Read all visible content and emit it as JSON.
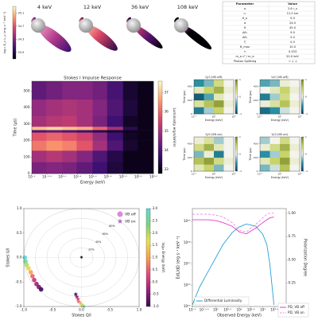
{
  "renders": {
    "labels": [
      "4 keV",
      "12 keV",
      "36 keV",
      "108 keV"
    ],
    "colorbar_label": "log₁₀ E_γ L_γ (erg s⁻¹ keV⁻¹)",
    "clim": [
      33.7,
      35.3
    ],
    "colorbar_ticks": [
      33.9,
      34.3,
      34.7,
      35.1
    ]
  },
  "parameters": {
    "header": [
      "Parameter",
      "Value"
    ],
    "rows": [
      [
        "a",
        "2.6 r_s"
      ],
      [
        "r₀",
        "12.0 km"
      ],
      [
        "θ_o",
        "9.0"
      ],
      [
        "α",
        "24.0"
      ],
      [
        "θ",
        "45.0"
      ],
      [
        "Δθ₁",
        "9.0"
      ],
      [
        "Δθ₂",
        "9.0"
      ],
      [
        "ζ",
        "0.0"
      ],
      [
        "B_max",
        "10.0"
      ],
      [
        "τ",
        "0.333"
      ],
      [
        "m_e c² / m_e",
        "20.0 keV"
      ],
      [
        "Photon Splitting",
        "→ ↓ ↓"
      ]
    ]
  },
  "chart_data": [
    {
      "type": "heatmap",
      "title": "Stokes I Impulse Response",
      "xlabel": "Energy (keV)",
      "ylabel": "Time (μs)",
      "xlog": true,
      "xlim": [
        0.1,
        1000
      ],
      "ylim": [
        0,
        560
      ],
      "xticks": [
        {
          "value": 0.1,
          "label": "10⁻¹"
        },
        {
          "value": 0.3162,
          "label": "10⁻⁰·⁵"
        },
        {
          "value": 1,
          "label": "10⁰·⁰"
        },
        {
          "value": 3.162,
          "label": "10⁰·⁵"
        },
        {
          "value": 10,
          "label": "10¹·⁰"
        },
        {
          "value": 31.62,
          "label": "10¹·⁵"
        },
        {
          "value": 100,
          "label": "10²·⁰"
        },
        {
          "value": 316.2,
          "label": "10²·⁵"
        },
        {
          "value": 1000,
          "label": "10³·⁰"
        }
      ],
      "yticks": [
        0,
        100,
        200,
        300,
        400,
        500
      ],
      "x_edges": [
        0.1,
        0.3,
        1,
        3,
        10,
        30,
        100,
        300,
        1000
      ],
      "y_edges": [
        0,
        70,
        140,
        200,
        250,
        265,
        285,
        350,
        450,
        560
      ],
      "values": [
        [
          34.5,
          34.6,
          34.5,
          34.2,
          33.8,
          33.3,
          33,
          33
        ],
        [
          35.0,
          35.2,
          35.0,
          34.6,
          34.0,
          33.4,
          33,
          33
        ],
        [
          36.2,
          36.5,
          36.3,
          35.8,
          35.0,
          34.0,
          33.2,
          33
        ],
        [
          35.8,
          36.0,
          35.8,
          35.5,
          34.8,
          33.8,
          33.1,
          33
        ],
        [
          34.0,
          34.2,
          34.0,
          33.8,
          33.5,
          33.2,
          33,
          33
        ],
        [
          37.0,
          37.2,
          37.0,
          36.8,
          36.0,
          35.0,
          33.5,
          33
        ],
        [
          35.0,
          35.2,
          35.3,
          35.0,
          34.5,
          33.8,
          33.1,
          33
        ],
        [
          34.8,
          35.0,
          35.1,
          35.0,
          34.6,
          34.0,
          33.3,
          33
        ],
        [
          34.2,
          34.4,
          34.6,
          34.6,
          34.4,
          33.9,
          33.2,
          33
        ]
      ],
      "clim": [
        32.8,
        37.6
      ],
      "colorbar_label": "Luminosity erg/s/keV/sr",
      "colorbar_ticks": [
        33,
        34,
        35,
        36,
        37
      ],
      "colormap": [
        "#000004",
        "#3b0f70",
        "#8c2981",
        "#de4968",
        "#fe9f6d",
        "#fcfdbf"
      ]
    },
    {
      "type": "heatmap",
      "title": "Q/I (VB off)",
      "xlabel": "Energy (keV)",
      "ylabel": "Time (μs)",
      "xlog": true,
      "xlim": [
        0.1,
        1000
      ],
      "ylim": [
        0,
        500
      ],
      "xticks": [
        {
          "value": 0.1,
          "label": "10⁻¹"
        },
        {
          "value": 10,
          "label": "10¹"
        },
        {
          "value": 1000,
          "label": "10³"
        }
      ],
      "yticks": [
        0,
        200,
        400
      ],
      "x_edges": [
        0.1,
        1,
        10,
        100,
        1000
      ],
      "y_edges": [
        0,
        100,
        200,
        300,
        400,
        500
      ],
      "values": [
        [
          -0.6,
          -0.2,
          0.5,
          0.0
        ],
        [
          0.3,
          0.6,
          0.8,
          0.1
        ],
        [
          -0.8,
          -0.4,
          0.2,
          0.0
        ],
        [
          0.2,
          0.5,
          0.7,
          0.1
        ],
        [
          -0.5,
          -0.3,
          0.4,
          0.0
        ]
      ],
      "clim": [
        -1,
        1
      ],
      "colorbar_ticks": [
        -1,
        0,
        1
      ],
      "colormap": [
        "#0b3a5e",
        "#2a8fa0",
        "#f4f4ee",
        "#c8d46a",
        "#6f7f1e"
      ]
    },
    {
      "type": "heatmap",
      "title": "U/I (VB off)",
      "xlabel": "Energy (keV)",
      "ylabel": "Time (μs)",
      "xlog": true,
      "xlim": [
        0.1,
        1000
      ],
      "ylim": [
        0,
        500
      ],
      "xticks": [
        {
          "value": 0.1,
          "label": "10⁻¹"
        },
        {
          "value": 10,
          "label": "10¹"
        },
        {
          "value": 1000,
          "label": "10³"
        }
      ],
      "yticks": [
        0,
        200,
        400
      ],
      "x_edges": [
        0.1,
        1,
        10,
        100,
        1000
      ],
      "y_edges": [
        0,
        100,
        200,
        300,
        400,
        500
      ],
      "values": [
        [
          -0.7,
          -0.5,
          -0.1,
          0.0
        ],
        [
          0.1,
          0.3,
          0.6,
          0.1
        ],
        [
          -0.6,
          -0.2,
          0.4,
          0.0
        ],
        [
          0.0,
          0.2,
          0.5,
          0.1
        ],
        [
          -0.4,
          -0.3,
          0.1,
          0.0
        ]
      ],
      "clim": [
        -1,
        1
      ],
      "colorbar_ticks": [
        -1,
        0,
        1
      ],
      "colormap": [
        "#0b3a5e",
        "#2a8fa0",
        "#f4f4ee",
        "#c8d46a",
        "#6f7f1e"
      ]
    },
    {
      "type": "heatmap",
      "title": "Q/I (VB on)",
      "xlabel": "Energy (keV)",
      "ylabel": "Time (μs)",
      "xlog": true,
      "xlim": [
        0.1,
        1000
      ],
      "ylim": [
        0,
        500
      ],
      "xticks": [
        {
          "value": 0.1,
          "label": "10⁻¹"
        },
        {
          "value": 10,
          "label": "10¹"
        },
        {
          "value": 1000,
          "label": "10³"
        }
      ],
      "yticks": [
        0,
        200,
        400
      ],
      "x_edges": [
        0.1,
        1,
        10,
        100,
        1000
      ],
      "y_edges": [
        0,
        100,
        200,
        300,
        400,
        500
      ],
      "values": [
        [
          0.2,
          0.5,
          -0.3,
          0.0
        ],
        [
          0.6,
          0.8,
          0.4,
          0.1
        ],
        [
          -0.3,
          0.1,
          -0.6,
          0.0
        ],
        [
          0.4,
          0.7,
          0.2,
          0.0
        ],
        [
          0.1,
          0.3,
          -0.2,
          0.0
        ]
      ],
      "clim": [
        -1,
        1
      ],
      "colorbar_ticks": [
        -1,
        0,
        1
      ],
      "colormap": [
        "#0b3a5e",
        "#2a8fa0",
        "#f4f4ee",
        "#c8d46a",
        "#6f7f1e"
      ]
    },
    {
      "type": "heatmap",
      "title": "U/I (VB on)",
      "xlabel": "Energy (keV)",
      "ylabel": "Time (μs)",
      "xlog": true,
      "xlim": [
        0.1,
        1000
      ],
      "ylim": [
        0,
        500
      ],
      "xticks": [
        {
          "value": 0.1,
          "label": "10⁻¹"
        },
        {
          "value": 10,
          "label": "10¹"
        },
        {
          "value": 1000,
          "label": "10³"
        }
      ],
      "yticks": [
        0,
        200,
        400
      ],
      "x_edges": [
        0.1,
        1,
        10,
        100,
        1000
      ],
      "y_edges": [
        0,
        100,
        200,
        300,
        400,
        500
      ],
      "values": [
        [
          -0.3,
          -0.1,
          0.6,
          0.0
        ],
        [
          0.2,
          0.5,
          0.8,
          0.1
        ],
        [
          -0.5,
          -0.2,
          0.5,
          0.0
        ],
        [
          0.1,
          0.4,
          0.7,
          0.1
        ],
        [
          -0.2,
          0.0,
          0.4,
          0.0
        ]
      ],
      "clim": [
        -1,
        1
      ],
      "colorbar_ticks": [
        -1,
        0,
        1
      ],
      "colormap": [
        "#0b3a5e",
        "#2a8fa0",
        "#f4f4ee",
        "#c8d46a",
        "#6f7f1e"
      ]
    },
    {
      "type": "scatter",
      "xlabel": "Stokes Q/I",
      "ylabel": "Stokes U/I",
      "xlim": [
        -1,
        1
      ],
      "ylim": [
        -1,
        1
      ],
      "xticks": [
        {
          "value": -1,
          "label": "-1.0"
        },
        -0.5,
        {
          "value": 0,
          "label": "0.0"
        },
        0.5,
        {
          "value": 1,
          "label": "1.0"
        }
      ],
      "yticks": [
        {
          "value": -1,
          "label": "-1.0"
        },
        -0.5,
        {
          "value": 0,
          "label": "0.0"
        },
        0.5,
        {
          "value": 1,
          "label": "1.0"
        }
      ],
      "rings": [
        {
          "value": 0.2,
          "label": "20%"
        },
        {
          "value": 0.4,
          "label": "40%"
        },
        {
          "value": 0.6,
          "label": "60%"
        },
        {
          "value": 0.8,
          "label": "80%"
        }
      ],
      "colorbar_label": "log₁₀ Energy (keV)",
      "clim": [
        -1,
        3
      ],
      "colorbar_ticks": [
        {
          "value": -1,
          "label": "-1.0"
        },
        -0.5,
        {
          "value": 0,
          "label": "0.0"
        },
        0.5,
        {
          "value": 1,
          "label": "1.0"
        },
        1.5,
        {
          "value": 2,
          "label": "2.0"
        },
        2.5,
        {
          "value": 3,
          "label": "3.0"
        }
      ],
      "colormap": [
        "#3b0a55",
        "#9c1f7a",
        "#e5497a",
        "#f7a14a",
        "#e8e24a",
        "#7fd37a",
        "#5fd9d9"
      ],
      "series": [
        {
          "name": "VB off",
          "marker": "circle",
          "color": "#d98ad9",
          "x": [
            -0.98,
            -0.97,
            -0.95,
            -0.92,
            -0.88,
            -0.85,
            -0.82,
            -0.78,
            -0.74,
            -0.7
          ],
          "y": [
            0.0,
            -0.08,
            -0.15,
            -0.22,
            -0.3,
            -0.38,
            -0.46,
            -0.54,
            -0.6,
            -0.65
          ],
          "energy": [
            3,
            2.5,
            2,
            1.5,
            1,
            0.5,
            0,
            -0.3,
            -0.6,
            -1
          ]
        },
        {
          "name": "VB on",
          "marker": "star",
          "color": "#b070c8",
          "x": [
            -0.1,
            -0.08,
            -0.06,
            -0.05,
            -0.02,
            0.0,
            0.02,
            0.04
          ],
          "y": [
            -0.75,
            -0.8,
            -0.85,
            -0.9,
            -0.93,
            -0.96,
            -0.98,
            -1.0
          ],
          "energy": [
            -1,
            -0.5,
            0,
            0.5,
            1,
            1.5,
            2,
            2.5
          ]
        }
      ]
    },
    {
      "type": "line",
      "xlabel": "Observed Energy (keV)",
      "ylabel": "EdL/dΩ (erg s⁻¹ keV⁻¹)",
      "y2label": "Polarization Degree",
      "xlog": true,
      "ylog": true,
      "xlim": [
        0.1,
        1000
      ],
      "ylim": [
        1e+35,
        4e+39
      ],
      "y2lim": [
        0,
        1.05
      ],
      "xticks": [
        {
          "value": 0.1,
          "label": "10⁻¹"
        },
        {
          "value": 0.3162,
          "label": "10⁻⁰·⁵"
        },
        {
          "value": 1,
          "label": "10⁰"
        },
        {
          "value": 3.162,
          "label": "10⁰·⁵"
        },
        {
          "value": 10,
          "label": "10¹"
        },
        {
          "value": 31.62,
          "label": "10¹·⁵"
        },
        {
          "value": 100,
          "label": "10²"
        },
        {
          "value": 316.2,
          "label": "10²·⁵"
        },
        {
          "value": 1000,
          "label": "10³"
        }
      ],
      "yticks": [
        {
          "value": 1e+35,
          "label": "10³⁵"
        },
        {
          "value": 1e+36,
          "label": "10³⁶"
        },
        {
          "value": 1e+37,
          "label": "10³⁷"
        },
        {
          "value": 1e+38,
          "label": "10³⁸"
        },
        {
          "value": 1e+39,
          "label": "10³⁹"
        }
      ],
      "y2ticks": [
        {
          "value": 0,
          "label": "0.00"
        },
        0.25,
        {
          "value": 0.5,
          "label": "0.50"
        },
        0.75,
        {
          "value": 1,
          "label": "1.00"
        }
      ],
      "x": [
        0.1,
        0.2,
        0.5,
        1,
        2,
        5,
        10,
        20,
        50,
        100,
        150,
        200,
        300
      ],
      "series": [
        {
          "name": "Differential Luminosity",
          "color": "#2a9fd8",
          "values": [
            1.2e+35,
            8e+35,
            5e+36,
            2e+37,
            8e+37,
            3e+38,
            5.5e+38,
            7.5e+38,
            6e+38,
            2.5e+38,
            8e+37,
            1e+37,
            1.2e+35
          ]
        },
        {
          "name": "PD, VB off",
          "color": "#e040c8",
          "axis": "y2",
          "values": [
            0.93,
            0.93,
            0.93,
            0.92,
            0.9,
            0.86,
            0.8,
            0.78,
            0.84,
            0.9,
            0.93,
            0.95,
            0.96
          ]
        },
        {
          "name": "PD, VB on",
          "color": "#e88ae0",
          "axis": "y2",
          "dash": true,
          "values": [
            0.99,
            0.99,
            0.99,
            0.98,
            0.96,
            0.9,
            0.82,
            0.8,
            0.88,
            0.95,
            0.99,
            1.0,
            1.0
          ]
        }
      ]
    }
  ]
}
